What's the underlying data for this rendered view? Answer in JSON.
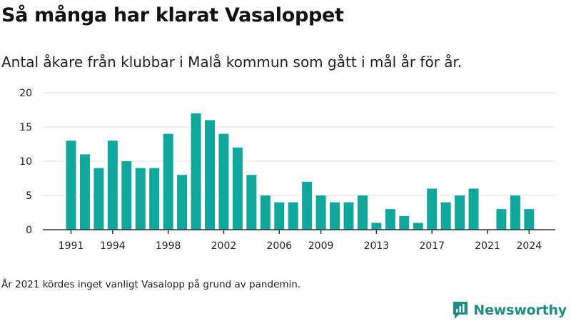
{
  "header": {
    "title": "Så många har klarat Vasaloppet",
    "subtitle": "Antal åkare från klubbar i Malå kommun som gått i mål år för år."
  },
  "footer": {
    "note": "År 2021 kördes inget vanligt Vasalopp på grund av pandemin.",
    "brand": "Newsworthy"
  },
  "colors": {
    "bar": "#10a79c",
    "brand": "#1f8f85"
  },
  "chart_data": {
    "type": "bar",
    "title": "Så många har klarat Vasaloppet",
    "subtitle": "Antal åkare från klubbar i Malå kommun som gått i mål år för år.",
    "xlabel": "",
    "ylabel": "",
    "ylim": [
      0,
      20
    ],
    "yticks": [
      0,
      5,
      10,
      15,
      20
    ],
    "grid": true,
    "categories": [
      1991,
      1992,
      1993,
      1994,
      1995,
      1996,
      1997,
      1998,
      1999,
      2000,
      2001,
      2002,
      2003,
      2004,
      2005,
      2006,
      2007,
      2008,
      2009,
      2010,
      2011,
      2012,
      2013,
      2014,
      2015,
      2016,
      2017,
      2018,
      2019,
      2020,
      2021,
      2022,
      2023,
      2024
    ],
    "values": [
      13,
      11,
      9,
      13,
      10,
      9,
      9,
      14,
      8,
      17,
      16,
      14,
      12,
      8,
      5,
      4,
      4,
      7,
      5,
      4,
      4,
      5,
      1,
      3,
      2,
      1,
      6,
      4,
      5,
      6,
      0,
      3,
      5,
      3
    ],
    "xticks": [
      1991,
      1994,
      1998,
      2002,
      2006,
      2009,
      2013,
      2017,
      2021,
      2024
    ]
  }
}
